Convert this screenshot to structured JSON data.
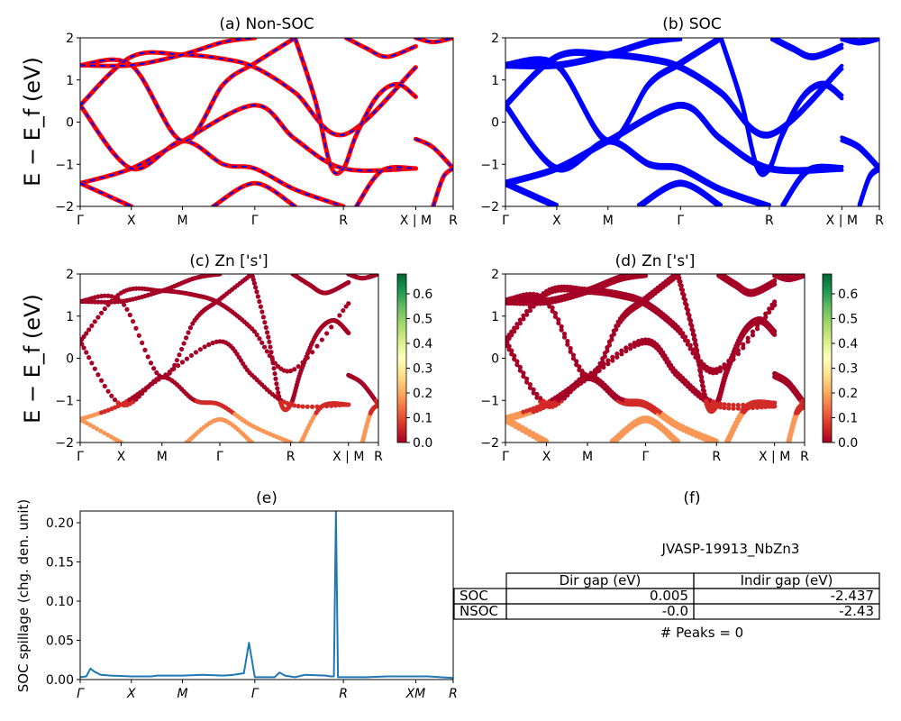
{
  "chart_data": [
    {
      "id": "a",
      "type": "line",
      "title": "(a) Non-SOC",
      "ylabel": "E − E_f (eV)",
      "ylim": [
        -2,
        2
      ],
      "yticks": [
        "2",
        "1",
        "0",
        "−1",
        "−2"
      ],
      "kpath_labels": [
        "Γ",
        "X",
        "M",
        "Γ",
        "R",
        "X | M",
        "R"
      ],
      "kpath_positions": [
        0.0,
        0.5,
        1.0,
        1.7071,
        2.5731,
        3.2802,
        3.6463
      ],
      "series": [
        {
          "color": "#ff0000",
          "style": "solid"
        },
        {
          "color": "#0000ff",
          "style": "dashed"
        }
      ],
      "bands": [
        [
          [
            0.0,
            -1.45
          ],
          [
            0.5,
            -1.1
          ],
          [
            1.0,
            -0.45
          ],
          [
            1.7071,
            0.4
          ],
          [
            2.1,
            -0.4
          ],
          [
            2.5731,
            -1.1
          ],
          [
            3.2802,
            -1.1
          ]
        ],
        [
          [
            0.0,
            0.4
          ],
          [
            0.5,
            -1.1
          ],
          [
            1.0,
            -0.45
          ],
          [
            1.4,
            -1.0
          ],
          [
            1.7071,
            -1.1
          ],
          [
            2.1,
            -1.6
          ],
          [
            2.5731,
            -2.0
          ]
        ],
        [
          [
            0.0,
            1.35
          ],
          [
            0.5,
            1.35
          ],
          [
            1.0,
            -0.45
          ],
          [
            1.4,
            0.9
          ],
          [
            1.7071,
            1.4
          ],
          [
            2.1,
            2.0
          ]
        ],
        [
          [
            0.0,
            0.4
          ],
          [
            0.5,
            1.55
          ],
          [
            1.0,
            1.6
          ],
          [
            1.4,
            1.5
          ],
          [
            1.7071,
            1.3
          ],
          [
            2.1,
            0.7
          ],
          [
            2.5731,
            -0.3
          ],
          [
            3.2802,
            1.3
          ]
        ],
        [
          [
            0.0,
            1.35
          ],
          [
            0.5,
            1.35
          ],
          [
            1.0,
            1.6
          ],
          [
            1.4,
            1.9
          ],
          [
            1.7071,
            2.0
          ]
        ],
        [
          [
            0.0,
            -1.45
          ],
          [
            0.5,
            -2.0
          ]
        ],
        [
          [
            1.3,
            -2.0
          ],
          [
            1.7071,
            -1.45
          ],
          [
            2.1,
            -2.0
          ]
        ],
        [
          [
            2.1,
            2.0
          ],
          [
            2.3,
            0.5
          ],
          [
            2.45,
            -1.05
          ],
          [
            2.5731,
            -1.1
          ],
          [
            2.7,
            -0.3
          ],
          [
            2.9,
            0.6
          ],
          [
            3.1,
            0.9
          ],
          [
            3.2802,
            0.6
          ]
        ],
        [
          [
            2.6,
            2.0
          ],
          [
            2.8,
            1.75
          ],
          [
            3.0,
            1.55
          ],
          [
            3.2802,
            1.8
          ]
        ],
        [
          [
            2.7,
            -2.0
          ],
          [
            2.95,
            -1.15
          ],
          [
            3.2802,
            -1.1
          ]
        ],
        [
          [
            3.2802,
            -0.4
          ],
          [
            3.45,
            -0.6
          ],
          [
            3.6463,
            -1.1
          ]
        ],
        [
          [
            3.2802,
            2.0
          ],
          [
            3.45,
            1.9
          ],
          [
            3.6463,
            2.0
          ]
        ],
        [
          [
            3.45,
            -2.0
          ],
          [
            3.55,
            -1.3
          ],
          [
            3.6463,
            -1.1
          ]
        ]
      ]
    },
    {
      "id": "b",
      "type": "line",
      "title": "(b) SOC",
      "ylabel": "",
      "ylim": [
        -2,
        2
      ],
      "yticks": [
        "2",
        "1",
        "0",
        "−1",
        "−2"
      ],
      "kpath_labels": [
        "Γ",
        "X",
        "M",
        "Γ",
        "R",
        "X | M",
        "R"
      ],
      "kpath_positions": [
        0.0,
        0.5,
        1.0,
        1.7071,
        2.5731,
        3.2802,
        3.6463
      ],
      "series": [
        {
          "color": "#0000ff",
          "style": "solid"
        }
      ]
    },
    {
      "id": "c",
      "type": "scatter",
      "title": "(c)  Zn ['s']",
      "ylabel": "E − E_f (eV)",
      "ylim": [
        -2,
        2
      ],
      "yticks": [
        "2",
        "1",
        "0",
        "−1",
        "−2"
      ],
      "kpath_labels": [
        "Γ",
        "X",
        "M",
        "Γ",
        "R",
        "X | M",
        "R"
      ],
      "kpath_positions": [
        0.0,
        0.5,
        1.0,
        1.7071,
        2.5731,
        3.2802,
        3.6463
      ],
      "colorbar": {
        "cmap": "RdYlGn",
        "range": [
          0,
          0.68
        ],
        "ticks": [
          "0.0",
          "0.1",
          "0.2",
          "0.3",
          "0.4",
          "0.5",
          "0.6"
        ]
      }
    },
    {
      "id": "d",
      "type": "scatter",
      "title": "(d) Zn ['s']",
      "ylabel": "",
      "ylim": [
        -2,
        2
      ],
      "yticks": [
        "2",
        "1",
        "0",
        "−1",
        "−2"
      ],
      "kpath_labels": [
        "Γ",
        "X",
        "M",
        "Γ",
        "R",
        "X | M",
        "R"
      ],
      "kpath_positions": [
        0.0,
        0.5,
        1.0,
        1.7071,
        2.5731,
        3.2802,
        3.6463
      ],
      "colorbar": {
        "cmap": "RdYlGn",
        "range": [
          0,
          0.68
        ],
        "ticks": [
          "0.0",
          "0.1",
          "0.2",
          "0.3",
          "0.4",
          "0.5",
          "0.6"
        ]
      }
    },
    {
      "id": "e",
      "type": "line",
      "title": "(e)",
      "ylabel": "SOC spillage (chg. den. unit)",
      "ylim": [
        0,
        0.215
      ],
      "yticks": [
        "0.00",
        "0.05",
        "0.10",
        "0.15",
        "0.20"
      ],
      "ytick_values": [
        0,
        0.05,
        0.1,
        0.15,
        0.2
      ],
      "kpath_labels": [
        "Γ",
        "X",
        "M",
        "Γ",
        "R",
        "XM",
        "R"
      ],
      "kpath_positions": [
        0.0,
        0.5,
        1.0,
        1.7071,
        2.5731,
        3.2802,
        3.6463
      ],
      "series": [
        {
          "color": "#1f77b4",
          "x": [
            0.0,
            0.06,
            0.1,
            0.14,
            0.2,
            0.3,
            0.5,
            0.7,
            0.75,
            0.9,
            1.0,
            1.2,
            1.4,
            1.5,
            1.6,
            1.65,
            1.7071,
            1.75,
            1.9,
            1.95,
            2.0,
            2.05,
            2.1,
            2.2,
            2.4,
            2.45,
            2.48,
            2.5,
            2.52,
            2.6,
            2.8,
            3.0,
            3.2802,
            3.4,
            3.6463
          ],
          "y": [
            0.003,
            0.004,
            0.014,
            0.01,
            0.006,
            0.005,
            0.004,
            0.004,
            0.005,
            0.005,
            0.005,
            0.006,
            0.005,
            0.006,
            0.008,
            0.047,
            0.003,
            0.003,
            0.003,
            0.009,
            0.005,
            0.004,
            0.003,
            0.006,
            0.005,
            0.004,
            0.004,
            0.215,
            0.003,
            0.003,
            0.003,
            0.004,
            0.004,
            0.004,
            0.002
          ]
        }
      ]
    },
    {
      "id": "f",
      "type": "table",
      "title": "(f)",
      "caption": "JVASP-19913_NbZn3",
      "columns": [
        "Dir gap (eV)",
        "Indir gap (eV)"
      ],
      "rows": [
        {
          "label": "SOC",
          "values": [
            "0.005",
            "-2.437"
          ]
        },
        {
          "label": "NSOC",
          "values": [
            "-0.0",
            "-2.43"
          ]
        }
      ],
      "footer": "# Peaks = 0"
    }
  ]
}
